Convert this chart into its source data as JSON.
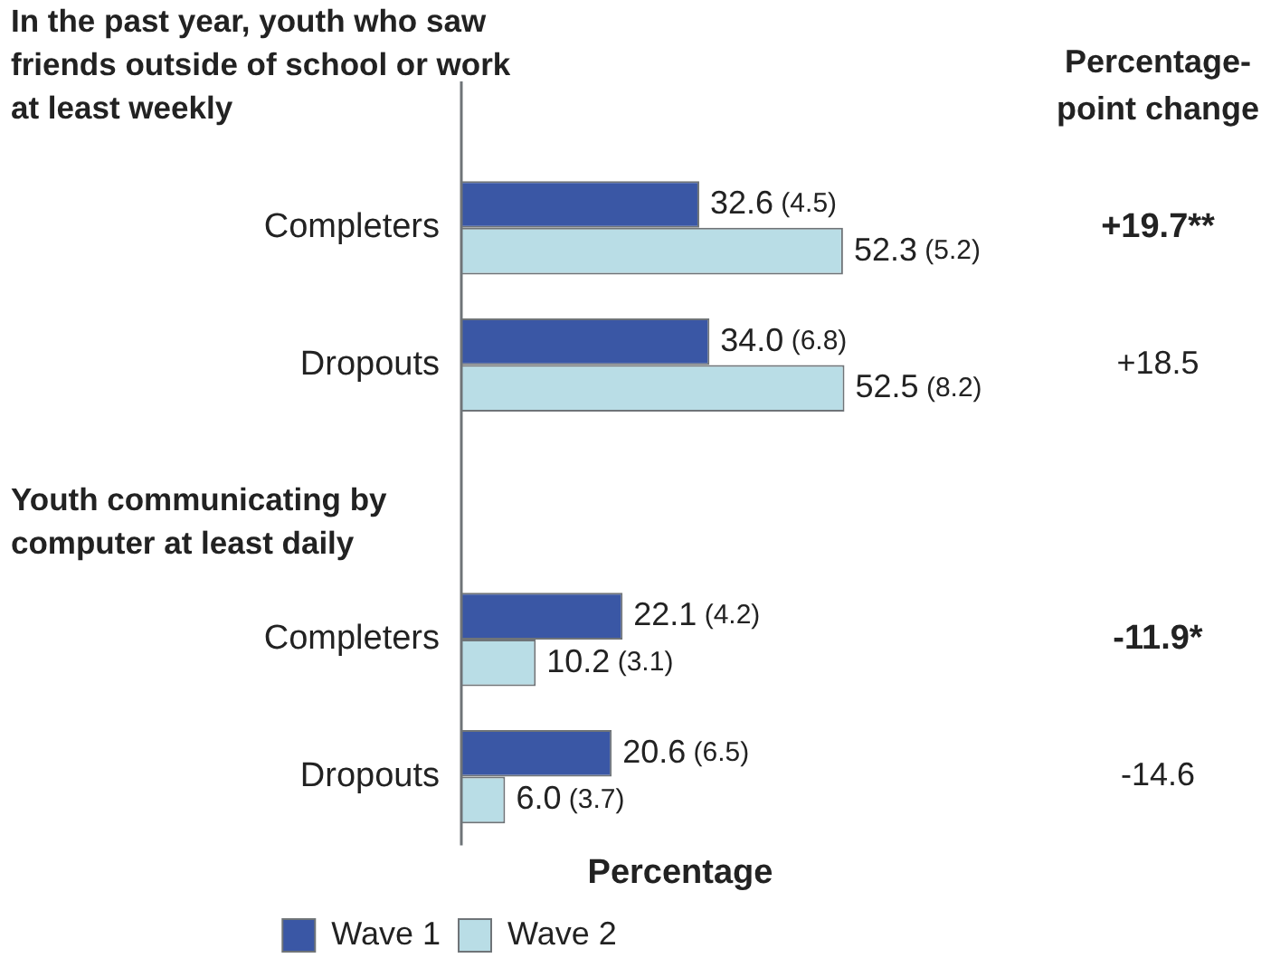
{
  "chart_data": {
    "type": "bar",
    "orientation": "horizontal",
    "xlabel": "Percentage",
    "categories": [
      "Completers",
      "Dropouts",
      null,
      "Completers",
      "Dropouts"
    ],
    "series": [
      {
        "name": "Wave 1",
        "color": "#3a57a5",
        "values": [
          32.6,
          34.0,
          null,
          22.1,
          20.6
        ],
        "value_labels": [
          "32.6 (4.5)",
          "34.0 (6.8)",
          null,
          "22.1 (4.2)",
          "20.6 (6.5)"
        ]
      },
      {
        "name": "Wave 2",
        "color": "#b9dde6",
        "values": [
          52.3,
          52.5,
          null,
          10.2,
          6.0
        ],
        "value_labels": [
          "52.3 (5.2)",
          "52.5 (8.2)",
          null,
          "10.2 (3.1)",
          "6.0 (3.7)"
        ]
      }
    ],
    "tick_labels": "y",
    "grid": false,
    "legend": "bottom",
    "annotations": [
      "In the past year, youth who saw friends outside of school or work at least weekly",
      "Youth communicating by computer at least daily",
      "Percentage-point change",
      "+19.7**",
      "+18.5",
      "-11.9*",
      "-14.6"
    ]
  }
}
